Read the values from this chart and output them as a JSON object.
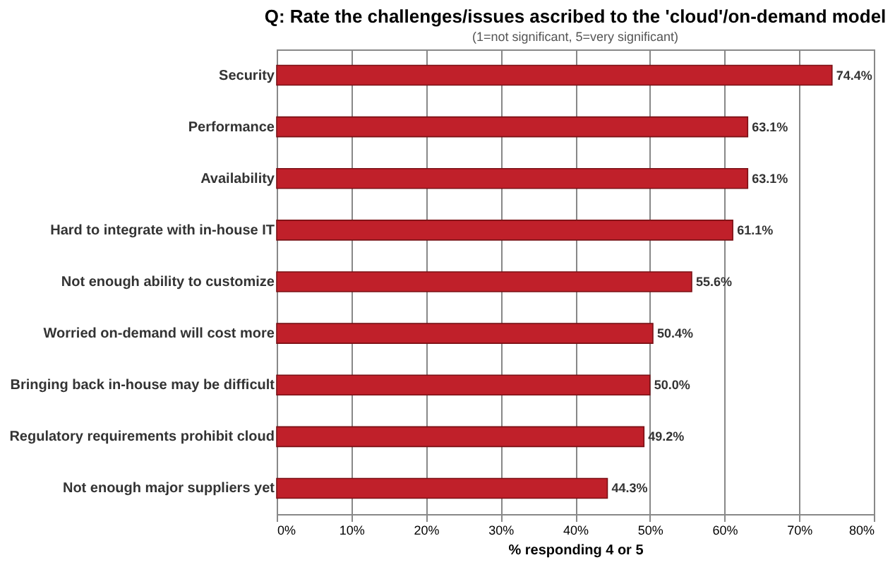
{
  "chart_data": {
    "type": "bar",
    "orientation": "horizontal",
    "title": "Q: Rate the challenges/issues ascribed to the 'cloud'/on-demand model",
    "subtitle": "(1=not significant, 5=very significant)",
    "xlabel": "% responding 4 or 5",
    "categories": [
      "Security",
      "Performance",
      "Availability",
      "Hard to integrate with in-house IT",
      "Not enough ability to customize",
      "Worried on-demand will cost more",
      "Bringing back in-house may be difficult",
      "Regulatory requirements prohibit cloud",
      "Not enough major suppliers yet"
    ],
    "values": [
      74.4,
      63.1,
      63.1,
      61.1,
      55.6,
      50.4,
      50.0,
      49.2,
      44.3
    ],
    "value_labels": [
      "74.4%",
      "63.1%",
      "63.1%",
      "61.1%",
      "55.6%",
      "50.4%",
      "50.0%",
      "49.2%",
      "44.3%"
    ],
    "color": "#c0202a",
    "xlim": [
      0,
      80
    ],
    "xticks": [
      {
        "value": 0,
        "label": "0%"
      },
      {
        "value": 10,
        "label": "10%"
      },
      {
        "value": 20,
        "label": "20%"
      },
      {
        "value": 30,
        "label": "30%"
      },
      {
        "value": 40,
        "label": "40%"
      },
      {
        "value": 50,
        "label": "50%"
      },
      {
        "value": 60,
        "label": "60%"
      },
      {
        "value": 70,
        "label": "70%"
      },
      {
        "value": 80,
        "label": "80%"
      }
    ],
    "grid": "x"
  }
}
